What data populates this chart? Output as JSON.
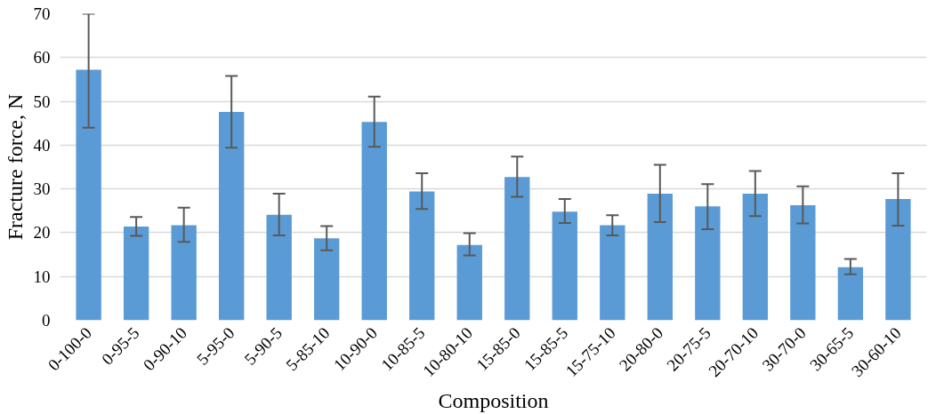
{
  "chart_data": {
    "type": "bar",
    "xlabel": "Composition",
    "ylabel": "Fracture force, N",
    "categories": [
      "0-100-0",
      "0-95-5",
      "0-90-10",
      "5-95-0",
      "5-90-5",
      "5-85-10",
      "10-90-0",
      "10-85-5",
      "10-80-10",
      "15-85-0",
      "15-85-5",
      "15-75-10",
      "20-80-0",
      "20-75-5",
      "20-70-10",
      "30-70-0",
      "30-65-5",
      "30-60-10"
    ],
    "values": [
      57.2,
      21.4,
      21.7,
      47.6,
      24.1,
      18.7,
      45.3,
      29.4,
      17.2,
      32.7,
      24.8,
      21.7,
      28.9,
      26.0,
      28.9,
      26.3,
      12.1,
      27.7
    ],
    "errors": [
      [
        44.0,
        70.0
      ],
      [
        19.3,
        23.6
      ],
      [
        17.9,
        25.7
      ],
      [
        39.4,
        55.8
      ],
      [
        19.4,
        28.9
      ],
      [
        16.0,
        21.5
      ],
      [
        39.6,
        51.1
      ],
      [
        25.4,
        33.6
      ],
      [
        14.8,
        19.9
      ],
      [
        28.2,
        37.4
      ],
      [
        22.2,
        27.7
      ],
      [
        19.4,
        24.0
      ],
      [
        22.4,
        35.5
      ],
      [
        20.8,
        31.1
      ],
      [
        23.8,
        34.1
      ],
      [
        22.1,
        30.6
      ],
      [
        10.5,
        14.0
      ],
      [
        21.6,
        33.6
      ]
    ],
    "color": "#5b9bd5",
    "ylim": [
      0,
      70
    ],
    "yticks": [
      0,
      10,
      20,
      30,
      40,
      50,
      60,
      70
    ],
    "grid": "y"
  }
}
